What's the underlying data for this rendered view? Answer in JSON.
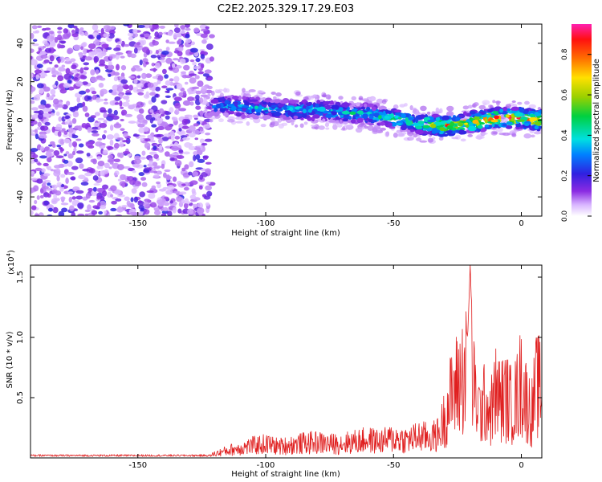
{
  "figure": {
    "title": "C2E2.2025.329.17.29.E03"
  },
  "chart_data": [
    {
      "type": "heatmap",
      "title": "C2E2.2025.329.17.29.E03",
      "xlabel": "Height of straight line (km)",
      "ylabel": "Frequency (Hz)",
      "xlim": [
        -192,
        8
      ],
      "ylim": [
        -50,
        50
      ],
      "xticks": [
        -150,
        -100,
        -50,
        0
      ],
      "yticks": [
        40,
        20,
        0,
        -20,
        -40
      ],
      "description_series": [
        {
          "name": "noise-region",
          "x_range": [
            -192,
            -121
          ],
          "y_range": [
            -50,
            50
          ],
          "amplitude": "0.1-0.25"
        },
        {
          "name": "signal-band",
          "x": [
            -121,
            -100,
            -80,
            -60,
            -40,
            -30,
            -20,
            -10,
            0,
            8
          ],
          "freq_center": [
            8,
            6,
            5,
            3,
            -2,
            -3,
            -1,
            1,
            1,
            0
          ],
          "amplitude_peak": [
            0.4,
            0.45,
            0.45,
            0.5,
            0.6,
            0.9,
            0.8,
            0.95,
            0.95,
            0.9
          ]
        }
      ],
      "colorbar": {
        "label": "Normalized spectral amplitude",
        "range": [
          0,
          0.95
        ],
        "ticks": [
          0.0,
          0.2,
          0.4,
          0.6,
          0.8
        ]
      }
    },
    {
      "type": "line",
      "xlabel": "Height of straight line (km)",
      "ylabel": "SNR (10 * v/v)",
      "yscale_label": "(x10",
      "yscale_exp": "4",
      "xlim": [
        -192,
        8
      ],
      "ylim": [
        0,
        1.6
      ],
      "xticks": [
        -150,
        -100,
        -50,
        0
      ],
      "yticks": [
        0.5,
        1.0,
        1.5
      ],
      "series": [
        {
          "name": "SNR",
          "color": "#e02020",
          "x": [
            -192,
            -180,
            -160,
            -140,
            -125,
            -121,
            -115,
            -110,
            -105,
            -100,
            -95,
            -90,
            -85,
            -80,
            -75,
            -70,
            -65,
            -60,
            -55,
            -50,
            -45,
            -40,
            -35,
            -32,
            -30,
            -28,
            -26,
            -24,
            -22,
            -21,
            -20,
            -19,
            -18,
            -16,
            -14,
            -12,
            -10,
            -8,
            -6,
            -4,
            -2,
            0,
            2,
            4,
            6,
            8
          ],
          "values": [
            0.02,
            0.02,
            0.02,
            0.02,
            0.02,
            0.04,
            0.09,
            0.12,
            0.15,
            0.17,
            0.14,
            0.16,
            0.18,
            0.19,
            0.17,
            0.18,
            0.2,
            0.22,
            0.2,
            0.24,
            0.22,
            0.26,
            0.25,
            0.3,
            0.5,
            0.7,
            0.85,
            0.95,
            1.1,
            1.0,
            1.6,
            0.9,
            0.75,
            0.55,
            0.7,
            0.55,
            0.8,
            0.7,
            0.75,
            0.65,
            0.72,
            0.95,
            0.7,
            0.55,
            0.9,
            0.8
          ]
        }
      ]
    }
  ]
}
